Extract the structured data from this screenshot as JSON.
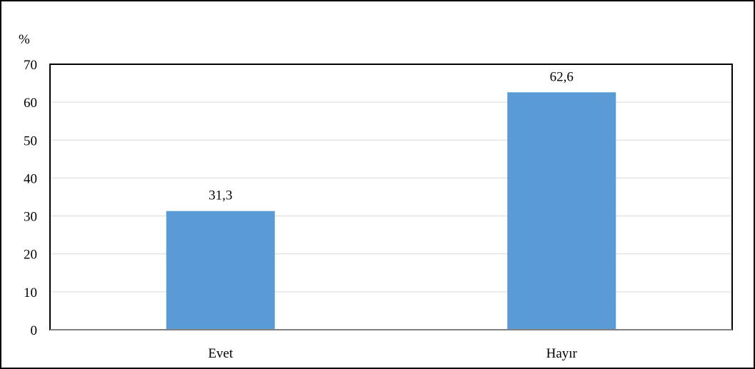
{
  "chart_data": {
    "type": "bar",
    "title": "",
    "xlabel": "",
    "ylabel": "%",
    "categories": [
      "Evet",
      "Hayır"
    ],
    "values": [
      31.3,
      62.6
    ],
    "data_labels": [
      "31,3",
      "62,6"
    ],
    "ylim": [
      0,
      70
    ],
    "yticks": [
      0,
      10,
      20,
      30,
      40,
      50,
      60,
      70
    ],
    "ytick_labels": [
      "0",
      "10",
      "20",
      "30",
      "40",
      "50",
      "60",
      "70"
    ],
    "grid": true,
    "legend": "none",
    "colors": {
      "bar": "#5b9bd5",
      "grid": "#d9d9d9",
      "plot_border": "#000000",
      "baseline": "#808080"
    }
  }
}
